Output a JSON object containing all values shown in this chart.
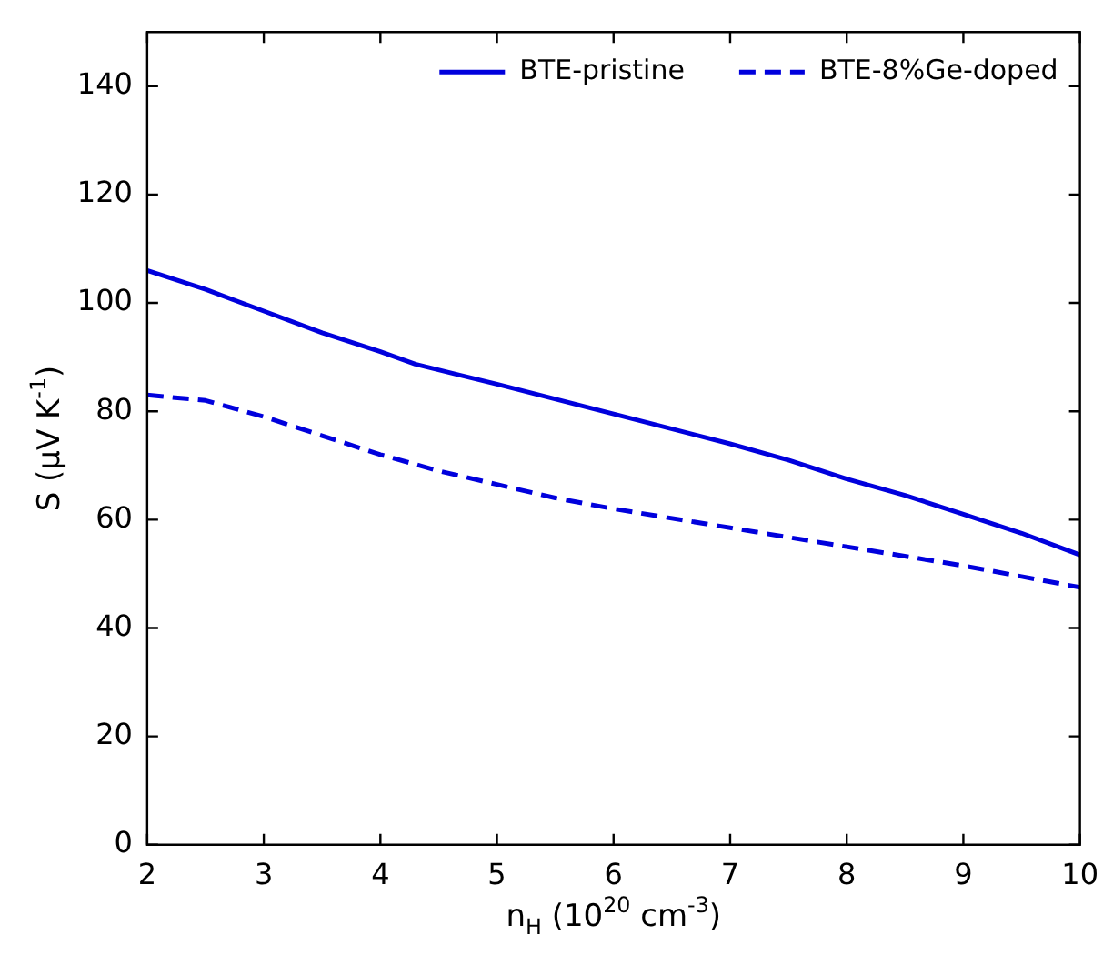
{
  "chart_data": {
    "type": "line",
    "xlabel": "n$_{H}$ (10$^{20}$ cm$^{-3}$)",
    "ylabel": "S (μV K$^{-1}$)",
    "xlim": [
      2,
      10
    ],
    "xticks": [
      2,
      3,
      4,
      5,
      6,
      7,
      8,
      9,
      10
    ],
    "ylim": [
      0,
      150
    ],
    "yticks": [
      0,
      20,
      40,
      60,
      80,
      100,
      120,
      140
    ],
    "legend": "top right",
    "marker": "none",
    "series": [
      {
        "name": "BTE-pristine",
        "color": "#0000dd",
        "line_style": "solid",
        "x": [
          2,
          2.5,
          3,
          3.5,
          4,
          4.3,
          5,
          6,
          7,
          7.5,
          8,
          8.5,
          9,
          9.5,
          10
        ],
        "values": [
          106,
          102.5,
          98.5,
          94.5,
          91,
          88.7,
          85,
          79.5,
          74,
          71,
          67.5,
          64.5,
          61,
          57.5,
          53.5
        ]
      },
      {
        "name": "BTE-8%Ge-doped",
        "color": "#0000dd",
        "line_style": "dashed",
        "x": [
          2,
          2.5,
          3,
          3.5,
          4,
          4.5,
          5,
          5.5,
          6,
          7,
          8,
          9,
          9.5,
          10
        ],
        "values": [
          83,
          82,
          79,
          75.5,
          72,
          69,
          66.5,
          64,
          62,
          58.5,
          55,
          51.5,
          49.5,
          47.5
        ]
      }
    ]
  }
}
